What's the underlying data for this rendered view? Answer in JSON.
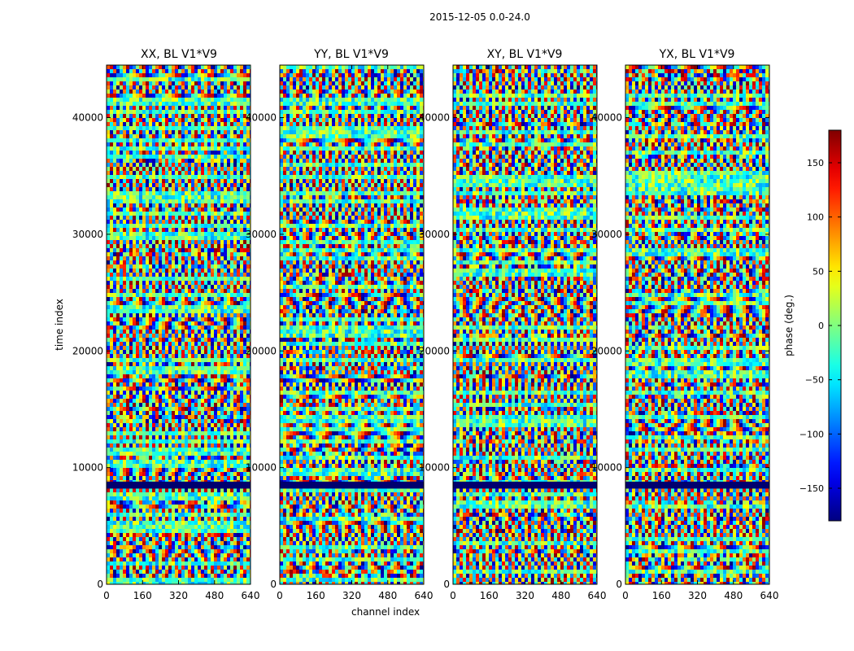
{
  "figure": {
    "title": "2015-12-05 0.0-24.0",
    "ylabel": "time index",
    "xlabel": "channel index",
    "colorbar_label": "phase (deg.)",
    "colormap": "jet"
  },
  "chart_data": [
    {
      "type": "heatmap",
      "title": "XX, BL V1*V9",
      "xlabel": "channel index",
      "ylabel": "time index",
      "xlim": [
        0,
        640
      ],
      "ylim": [
        0,
        44500
      ],
      "xticks": [
        0,
        160,
        320,
        480,
        640
      ],
      "yticks": [
        0,
        10000,
        20000,
        30000,
        40000
      ],
      "colorbar": {
        "label": "phase (deg.)",
        "range": [
          -180,
          180
        ],
        "ticks": [
          -150,
          -100,
          -50,
          0,
          50,
          100,
          150
        ]
      }
    },
    {
      "type": "heatmap",
      "title": "YY, BL V1*V9",
      "xlabel": "channel index",
      "ylabel": "time index",
      "xlim": [
        0,
        640
      ],
      "ylim": [
        0,
        44500
      ],
      "xticks": [
        0,
        160,
        320,
        480,
        640
      ],
      "yticks": [
        0,
        10000,
        20000,
        30000,
        40000
      ],
      "colorbar": {
        "label": "phase (deg.)",
        "range": [
          -180,
          180
        ],
        "ticks": [
          -150,
          -100,
          -50,
          0,
          50,
          100,
          150
        ]
      }
    },
    {
      "type": "heatmap",
      "title": "XY, BL V1*V9",
      "xlabel": "channel index",
      "ylabel": "time index",
      "xlim": [
        0,
        640
      ],
      "ylim": [
        0,
        44500
      ],
      "xticks": [
        0,
        160,
        320,
        480,
        640
      ],
      "yticks": [
        0,
        10000,
        20000,
        30000,
        40000
      ],
      "colorbar": {
        "label": "phase (deg.)",
        "range": [
          -180,
          180
        ],
        "ticks": [
          -150,
          -100,
          -50,
          0,
          50,
          100,
          150
        ]
      }
    },
    {
      "type": "heatmap",
      "title": "YX, BL V1*V9",
      "xlabel": "channel index",
      "ylabel": "time index",
      "xlim": [
        0,
        640
      ],
      "ylim": [
        0,
        44500
      ],
      "xticks": [
        0,
        160,
        320,
        480,
        640
      ],
      "yticks": [
        0,
        10000,
        20000,
        30000,
        40000
      ],
      "colorbar": {
        "label": "phase (deg.)",
        "range": [
          -180,
          180
        ],
        "ticks": [
          -150,
          -100,
          -50,
          0,
          50,
          100,
          150
        ]
      }
    }
  ]
}
